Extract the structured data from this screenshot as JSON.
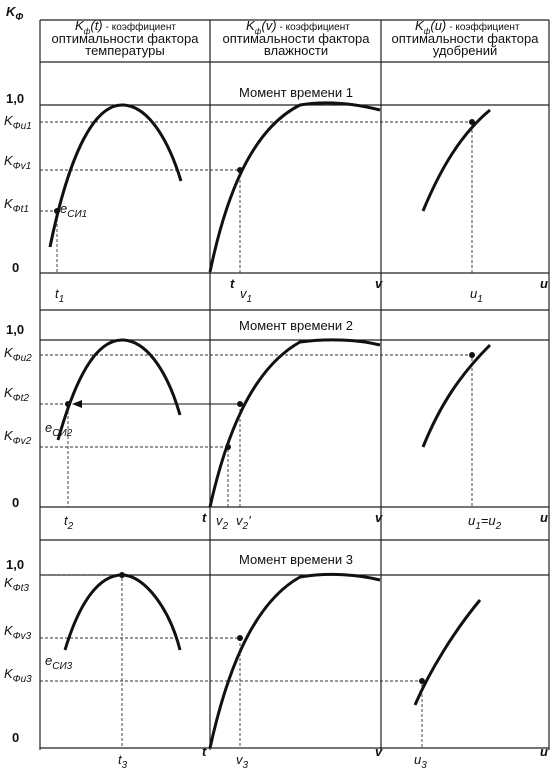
{
  "axis_symbol": [
    {
      "text": "K"
    },
    {
      "text": "Ф",
      "sub": true
    }
  ],
  "columns": [
    {
      "symbol": [
        {
          "text": "K"
        },
        {
          "text": "ф",
          "sub": true
        },
        {
          "text": "(t)"
        }
      ],
      "lines": [
        "- коэффициент",
        "оптимальности фактора",
        "температуры"
      ]
    },
    {
      "symbol": [
        {
          "text": "K"
        },
        {
          "text": "ф",
          "sub": true
        },
        {
          "text": "(v)"
        }
      ],
      "lines": [
        "- коэффициент",
        "оптимальности фактора",
        "влажности"
      ]
    },
    {
      "symbol": [
        {
          "text": "K"
        },
        {
          "text": "ф",
          "sub": true
        },
        {
          "text": "(u)"
        }
      ],
      "lines": [
        "- коэффициент",
        "оптимальности фактора",
        "удобрений"
      ]
    }
  ],
  "axes": [
    "t",
    "v",
    "u"
  ],
  "panels": [
    {
      "title": "Момент времени 1",
      "one": "1,0",
      "zero": "0",
      "y_labels": [
        [
          {
            "text": "K"
          },
          {
            "text": "Фu1",
            "sub": true
          }
        ],
        [
          {
            "text": "K"
          },
          {
            "text": "Фv1",
            "sub": true
          }
        ],
        [
          {
            "text": "K"
          },
          {
            "text": "Фt1",
            "sub": true
          }
        ]
      ],
      "point_label": [
        {
          "text": "e"
        },
        {
          "text": "СИ1",
          "sub": true
        }
      ],
      "x_labels": [
        [
          {
            "text": "t"
          },
          {
            "text": "1",
            "sub": true
          }
        ],
        [
          {
            "text": "v"
          },
          {
            "text": "1",
            "sub": true
          }
        ],
        [
          {
            "text": "u"
          },
          {
            "text": "1",
            "sub": true
          }
        ]
      ]
    },
    {
      "title": "Момент времени 2",
      "one": "1,0",
      "zero": "0",
      "y_labels": [
        [
          {
            "text": "K"
          },
          {
            "text": "Фu2",
            "sub": true
          }
        ],
        [
          {
            "text": "K"
          },
          {
            "text": "Фt2",
            "sub": true
          }
        ],
        [
          {
            "text": "K"
          },
          {
            "text": "Фv2",
            "sub": true
          }
        ]
      ],
      "point_label": [
        {
          "text": "e"
        },
        {
          "text": "СИ2",
          "sub": true
        }
      ],
      "x_labels": [
        [
          {
            "text": "t"
          },
          {
            "text": "2",
            "sub": true
          }
        ],
        [
          {
            "text": "v"
          },
          {
            "text": "2",
            "sub": true
          }
        ],
        [
          {
            "text": "v"
          },
          {
            "text": "2",
            "sub": true
          },
          {
            "text": "'"
          }
        ],
        [
          {
            "text": "u"
          },
          {
            "text": "1",
            "sub": true
          },
          {
            "text": "=u"
          },
          {
            "text": "2",
            "sub": true
          }
        ]
      ]
    },
    {
      "title": "Момент времени 3",
      "one": "1,0",
      "zero": "0",
      "y_labels": [
        [
          {
            "text": "K"
          },
          {
            "text": "Фt3",
            "sub": true
          }
        ],
        [
          {
            "text": "K"
          },
          {
            "text": "Фv3",
            "sub": true
          }
        ],
        [
          {
            "text": "K"
          },
          {
            "text": "Фu3",
            "sub": true
          }
        ]
      ],
      "point_label": [
        {
          "text": "e"
        },
        {
          "text": "СИ3",
          "sub": true
        }
      ],
      "x_labels": [
        [
          {
            "text": "t"
          },
          {
            "text": "3",
            "sub": true
          }
        ],
        [
          {
            "text": "v"
          },
          {
            "text": "3",
            "sub": true
          }
        ],
        [
          {
            "text": "u"
          },
          {
            "text": "3",
            "sub": true
          }
        ]
      ]
    }
  ]
}
